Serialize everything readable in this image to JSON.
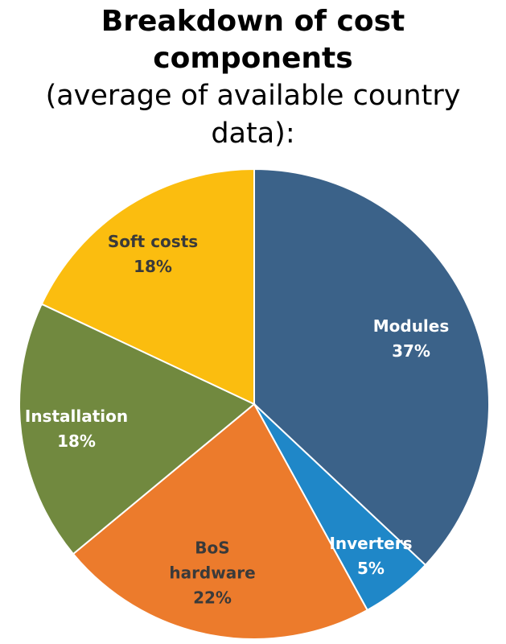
{
  "title_lines": [
    "Breakdown of cost",
    "components"
  ],
  "subtitle_lines": [
    "(average of available country",
    "data):"
  ],
  "chart_data": {
    "type": "pie",
    "slices": [
      {
        "category": "Modules",
        "label_lines": [
          "Modules"
        ],
        "value": 37,
        "value_label": "37%",
        "color": "#3b6289",
        "light_text": true
      },
      {
        "category": "Inverters",
        "label_lines": [
          "Inverters"
        ],
        "value": 5,
        "value_label": "5%",
        "color": "#1f87c8",
        "light_text": true
      },
      {
        "category": "BoS hardware",
        "label_lines": [
          "BoS",
          "hardware"
        ],
        "value": 22,
        "value_label": "22%",
        "color": "#ec7b2c",
        "light_text": false
      },
      {
        "category": "Installation",
        "label_lines": [
          "Installation"
        ],
        "value": 18,
        "value_label": "18%",
        "color": "#71893f",
        "light_text": true
      },
      {
        "category": "Soft costs",
        "label_lines": [
          "Soft costs"
        ],
        "value": 18,
        "value_label": "18%",
        "color": "#fbbd0f",
        "light_text": false
      }
    ]
  }
}
